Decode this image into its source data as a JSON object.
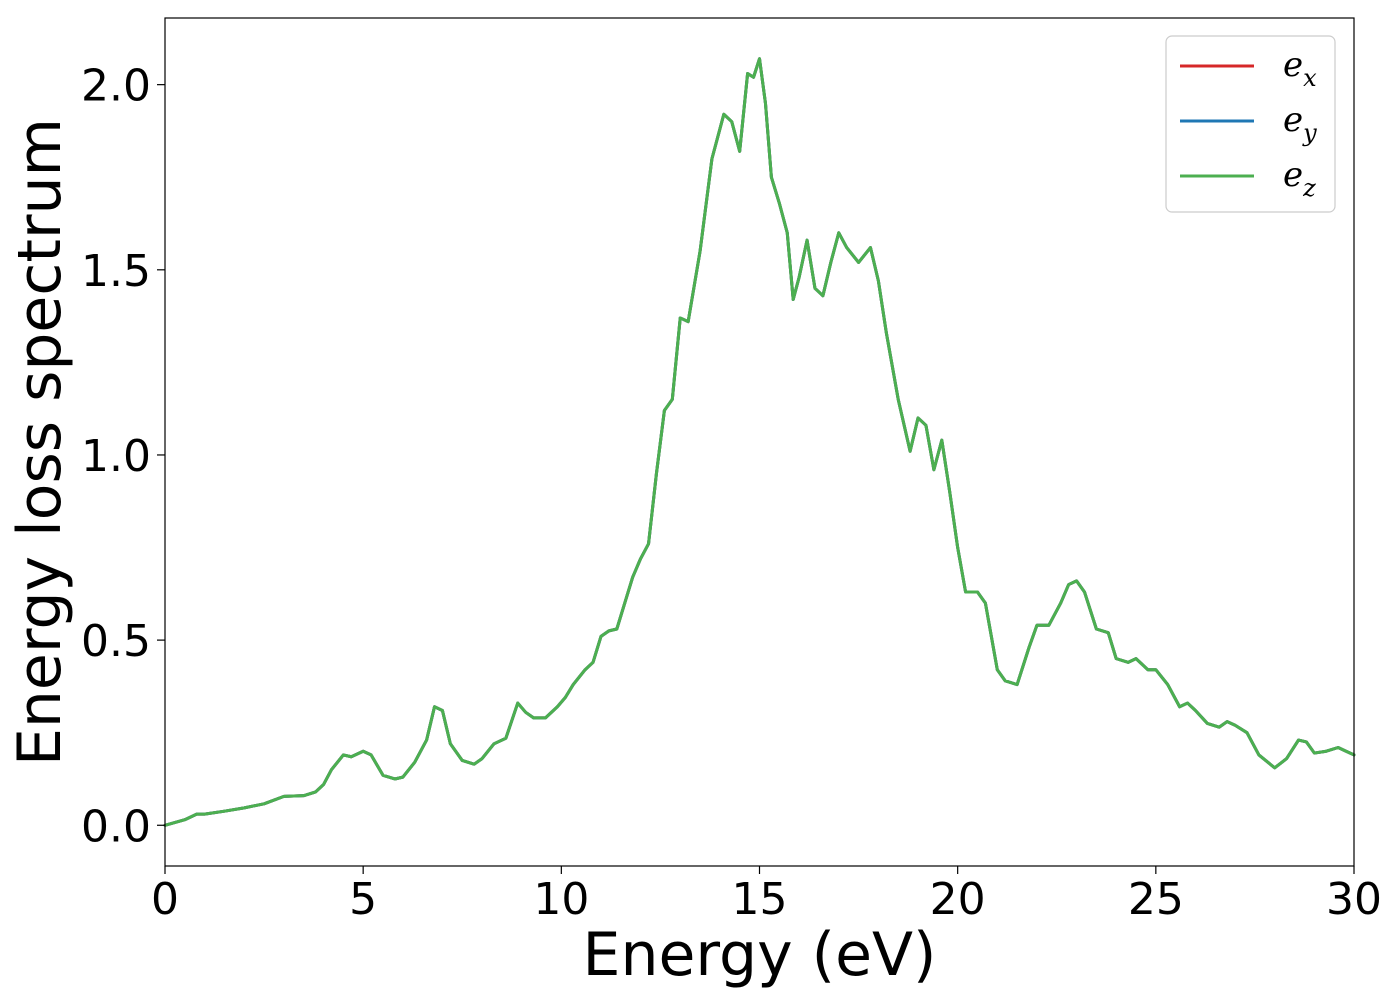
{
  "chart_data": {
    "type": "line",
    "title": "",
    "xlabel": "Energy (eV)",
    "ylabel": "Energy loss spectrum",
    "xlim": [
      0,
      30
    ],
    "ylim": [
      -0.11,
      2.18
    ],
    "xticks": [
      0,
      5,
      10,
      15,
      20,
      25,
      30
    ],
    "yticks": [
      0.0,
      0.5,
      1.0,
      1.5,
      2.0
    ],
    "xtick_labels": [
      "0",
      "5",
      "10",
      "15",
      "20",
      "25",
      "30"
    ],
    "ytick_labels": [
      "0.0",
      "0.5",
      "1.0",
      "1.5",
      "2.0"
    ],
    "grid": false,
    "legend_position": "top-right",
    "x": [
      0,
      0.5,
      0.8,
      1.0,
      1.5,
      2.0,
      2.5,
      3.0,
      3.5,
      3.8,
      4.0,
      4.2,
      4.5,
      4.7,
      5.0,
      5.2,
      5.5,
      5.8,
      6.0,
      6.3,
      6.6,
      6.8,
      7.0,
      7.2,
      7.5,
      7.8,
      8.0,
      8.3,
      8.6,
      8.9,
      9.1,
      9.3,
      9.6,
      9.9,
      10.1,
      10.3,
      10.6,
      10.8,
      11.0,
      11.2,
      11.4,
      11.6,
      11.8,
      12.0,
      12.2,
      12.4,
      12.6,
      12.8,
      13.0,
      13.2,
      13.5,
      13.8,
      14.1,
      14.3,
      14.5,
      14.7,
      14.85,
      15.0,
      15.15,
      15.3,
      15.5,
      15.7,
      15.85,
      16.0,
      16.2,
      16.4,
      16.6,
      16.8,
      17.0,
      17.2,
      17.5,
      17.8,
      18.0,
      18.2,
      18.5,
      18.8,
      19.0,
      19.2,
      19.4,
      19.6,
      19.8,
      20.0,
      20.2,
      20.5,
      20.7,
      21.0,
      21.2,
      21.5,
      21.8,
      22.0,
      22.3,
      22.6,
      22.8,
      23.0,
      23.2,
      23.5,
      23.8,
      24.0,
      24.3,
      24.5,
      24.8,
      25.0,
      25.3,
      25.6,
      25.8,
      26.0,
      26.3,
      26.6,
      26.8,
      27.0,
      27.3,
      27.6,
      28.0,
      28.3,
      28.6,
      28.8,
      29.0,
      29.3,
      29.6,
      29.8,
      30.0
    ],
    "series": [
      {
        "name": "e_x",
        "color": "#d62728",
        "values": [
          0.0,
          0.015,
          0.03,
          0.03,
          0.038,
          0.047,
          0.058,
          0.078,
          0.08,
          0.09,
          0.11,
          0.15,
          0.19,
          0.185,
          0.2,
          0.19,
          0.135,
          0.125,
          0.13,
          0.17,
          0.23,
          0.32,
          0.31,
          0.22,
          0.175,
          0.165,
          0.18,
          0.22,
          0.235,
          0.33,
          0.305,
          0.29,
          0.29,
          0.32,
          0.345,
          0.38,
          0.42,
          0.44,
          0.51,
          0.525,
          0.53,
          0.6,
          0.67,
          0.72,
          0.76,
          0.95,
          1.12,
          1.15,
          1.37,
          1.36,
          1.55,
          1.8,
          1.92,
          1.9,
          1.82,
          2.03,
          2.02,
          2.07,
          1.95,
          1.75,
          1.68,
          1.6,
          1.42,
          1.48,
          1.58,
          1.45,
          1.43,
          1.52,
          1.6,
          1.56,
          1.52,
          1.56,
          1.47,
          1.33,
          1.15,
          1.01,
          1.1,
          1.08,
          0.96,
          1.04,
          0.9,
          0.75,
          0.63,
          0.63,
          0.6,
          0.42,
          0.39,
          0.38,
          0.48,
          0.54,
          0.54,
          0.6,
          0.65,
          0.66,
          0.63,
          0.53,
          0.52,
          0.45,
          0.44,
          0.45,
          0.42,
          0.42,
          0.38,
          0.32,
          0.33,
          0.31,
          0.275,
          0.265,
          0.28,
          0.27,
          0.25,
          0.19,
          0.155,
          0.18,
          0.23,
          0.225,
          0.195,
          0.2,
          0.21,
          0.2,
          0.19
        ]
      },
      {
        "name": "e_y",
        "color": "#1f77b4",
        "values": [
          0.0,
          0.015,
          0.03,
          0.03,
          0.038,
          0.047,
          0.058,
          0.078,
          0.08,
          0.09,
          0.11,
          0.15,
          0.19,
          0.185,
          0.2,
          0.19,
          0.135,
          0.125,
          0.13,
          0.17,
          0.23,
          0.32,
          0.31,
          0.22,
          0.175,
          0.165,
          0.18,
          0.22,
          0.235,
          0.33,
          0.305,
          0.29,
          0.29,
          0.32,
          0.345,
          0.38,
          0.42,
          0.44,
          0.51,
          0.525,
          0.53,
          0.6,
          0.67,
          0.72,
          0.76,
          0.95,
          1.12,
          1.15,
          1.37,
          1.36,
          1.55,
          1.8,
          1.92,
          1.9,
          1.82,
          2.03,
          2.02,
          2.07,
          1.95,
          1.75,
          1.68,
          1.6,
          1.42,
          1.48,
          1.58,
          1.45,
          1.43,
          1.52,
          1.6,
          1.56,
          1.52,
          1.56,
          1.47,
          1.33,
          1.15,
          1.01,
          1.1,
          1.08,
          0.96,
          1.04,
          0.9,
          0.75,
          0.63,
          0.63,
          0.6,
          0.42,
          0.39,
          0.38,
          0.48,
          0.54,
          0.54,
          0.6,
          0.65,
          0.66,
          0.63,
          0.53,
          0.52,
          0.45,
          0.44,
          0.45,
          0.42,
          0.42,
          0.38,
          0.32,
          0.33,
          0.31,
          0.275,
          0.265,
          0.28,
          0.27,
          0.25,
          0.19,
          0.155,
          0.18,
          0.23,
          0.225,
          0.195,
          0.2,
          0.21,
          0.2,
          0.19
        ]
      },
      {
        "name": "e_z",
        "color": "#4caf50",
        "values": [
          0.0,
          0.015,
          0.03,
          0.03,
          0.038,
          0.047,
          0.058,
          0.078,
          0.08,
          0.09,
          0.11,
          0.15,
          0.19,
          0.185,
          0.2,
          0.19,
          0.135,
          0.125,
          0.13,
          0.17,
          0.23,
          0.32,
          0.31,
          0.22,
          0.175,
          0.165,
          0.18,
          0.22,
          0.235,
          0.33,
          0.305,
          0.29,
          0.29,
          0.32,
          0.345,
          0.38,
          0.42,
          0.44,
          0.51,
          0.525,
          0.53,
          0.6,
          0.67,
          0.72,
          0.76,
          0.95,
          1.12,
          1.15,
          1.37,
          1.36,
          1.55,
          1.8,
          1.92,
          1.9,
          1.82,
          2.03,
          2.02,
          2.07,
          1.95,
          1.75,
          1.68,
          1.6,
          1.42,
          1.48,
          1.58,
          1.45,
          1.43,
          1.52,
          1.6,
          1.56,
          1.52,
          1.56,
          1.47,
          1.33,
          1.15,
          1.01,
          1.1,
          1.08,
          0.96,
          1.04,
          0.9,
          0.75,
          0.63,
          0.63,
          0.6,
          0.42,
          0.39,
          0.38,
          0.48,
          0.54,
          0.54,
          0.6,
          0.65,
          0.66,
          0.63,
          0.53,
          0.52,
          0.45,
          0.44,
          0.45,
          0.42,
          0.42,
          0.38,
          0.32,
          0.33,
          0.31,
          0.275,
          0.265,
          0.28,
          0.27,
          0.25,
          0.19,
          0.155,
          0.18,
          0.23,
          0.225,
          0.195,
          0.2,
          0.21,
          0.2,
          0.19
        ]
      }
    ],
    "legend": [
      {
        "base": "e",
        "sub": "x"
      },
      {
        "base": "e",
        "sub": "y"
      },
      {
        "base": "e",
        "sub": "z"
      }
    ]
  }
}
